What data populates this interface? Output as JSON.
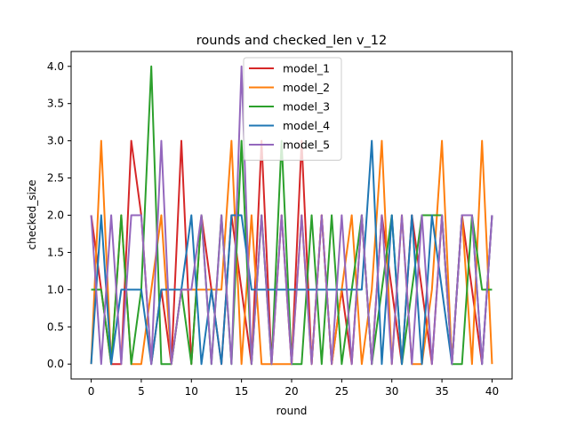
{
  "chart_data": {
    "type": "line",
    "title": "rounds and checked_len v_12",
    "xlabel": "round",
    "ylabel": "checked_size",
    "xlim": [
      -2,
      42
    ],
    "ylim": [
      -0.2,
      4.2
    ],
    "xticks": [
      0,
      5,
      10,
      15,
      20,
      25,
      30,
      35,
      40
    ],
    "yticks": [
      0.0,
      0.5,
      1.0,
      1.5,
      2.0,
      2.5,
      3.0,
      3.5,
      4.0
    ],
    "ytick_labels": [
      "0.0",
      "0.5",
      "1.0",
      "1.5",
      "2.0",
      "2.5",
      "3.0",
      "3.5",
      "4.0"
    ],
    "xtick_labels": [
      "0",
      "5",
      "10",
      "15",
      "20",
      "25",
      "30",
      "35",
      "40"
    ],
    "grid": false,
    "legend_position": "upper-center",
    "series": [
      {
        "name": "model_1",
        "color": "#d62728",
        "x": [
          0,
          1,
          2,
          3,
          4,
          5,
          6,
          7,
          8,
          9,
          10,
          11,
          12,
          13,
          14,
          15,
          16,
          17,
          18,
          19,
          20,
          21,
          22,
          23,
          24,
          25,
          26,
          27,
          28,
          29,
          30,
          31,
          32,
          33,
          34,
          35,
          36,
          37,
          38,
          39,
          40
        ],
        "y": [
          2,
          1,
          0,
          0,
          3,
          2,
          0,
          1,
          0,
          3,
          0,
          2,
          1,
          0,
          2,
          1,
          0,
          3,
          0,
          2,
          0,
          3,
          0,
          2,
          0,
          1,
          0,
          2,
          0,
          2,
          1,
          0,
          2,
          1,
          0,
          2,
          0,
          2,
          1,
          0,
          2
        ]
      },
      {
        "name": "model_2",
        "color": "#ff7f0e",
        "x": [
          0,
          1,
          2,
          3,
          4,
          5,
          6,
          7,
          8,
          9,
          10,
          11,
          12,
          13,
          14,
          15,
          16,
          17,
          18,
          19,
          20,
          21,
          22,
          23,
          24,
          25,
          26,
          27,
          28,
          29,
          30,
          31,
          32,
          33,
          34,
          35,
          36,
          37,
          38,
          39,
          40
        ],
        "y": [
          0,
          3,
          0,
          2,
          0,
          0,
          1,
          2,
          0,
          1,
          1,
          1,
          1,
          1,
          3,
          0,
          2,
          0,
          0,
          0,
          0,
          2,
          0,
          2,
          0,
          1,
          2,
          0,
          1,
          3,
          0,
          2,
          0,
          0,
          1,
          3,
          0,
          2,
          0,
          3,
          0
        ]
      },
      {
        "name": "model_3",
        "color": "#2ca02c",
        "x": [
          0,
          1,
          2,
          3,
          4,
          5,
          6,
          7,
          8,
          9,
          10,
          11,
          12,
          13,
          14,
          15,
          16,
          17,
          18,
          19,
          20,
          21,
          22,
          23,
          24,
          25,
          26,
          27,
          28,
          29,
          30,
          31,
          32,
          33,
          34,
          35,
          36,
          37,
          38,
          39,
          40
        ],
        "y": [
          1,
          1,
          0,
          2,
          0,
          1,
          4,
          0,
          0,
          1,
          0,
          2,
          0,
          2,
          0,
          3,
          0,
          2,
          0,
          3,
          0,
          0,
          2,
          0,
          2,
          0,
          1,
          2,
          0,
          1,
          2,
          0,
          1,
          2,
          2,
          2,
          0,
          0,
          2,
          1,
          1
        ]
      },
      {
        "name": "model_4",
        "color": "#1f77b4",
        "x": [
          0,
          1,
          2,
          3,
          4,
          5,
          6,
          7,
          8,
          9,
          10,
          11,
          12,
          13,
          14,
          15,
          16,
          17,
          18,
          19,
          20,
          21,
          22,
          23,
          24,
          25,
          26,
          27,
          28,
          29,
          30,
          31,
          32,
          33,
          34,
          35,
          36,
          37,
          38,
          39,
          40
        ],
        "y": [
          0,
          2,
          0,
          1,
          1,
          1,
          0,
          1,
          1,
          1,
          2,
          0,
          1,
          0,
          2,
          2,
          1,
          1,
          1,
          1,
          1,
          1,
          1,
          1,
          1,
          1,
          1,
          1,
          3,
          0,
          2,
          0,
          2,
          0,
          2,
          1,
          0,
          2,
          2,
          0,
          2
        ]
      },
      {
        "name": "model_5",
        "color": "#9467bd",
        "x": [
          0,
          1,
          2,
          3,
          4,
          5,
          6,
          7,
          8,
          9,
          10,
          11,
          12,
          13,
          14,
          15,
          16,
          17,
          18,
          19,
          20,
          21,
          22,
          23,
          24,
          25,
          26,
          27,
          28,
          29,
          30,
          31,
          32,
          33,
          34,
          35,
          36,
          37,
          38,
          39,
          40
        ],
        "y": [
          2,
          0,
          2,
          0,
          2,
          2,
          0,
          3,
          0,
          1,
          1,
          2,
          0,
          2,
          0,
          4,
          0,
          2,
          0,
          2,
          0,
          2,
          0,
          2,
          0,
          2,
          0,
          2,
          0,
          2,
          0,
          2,
          0,
          2,
          0,
          2,
          0,
          2,
          2,
          0,
          2
        ]
      }
    ]
  }
}
